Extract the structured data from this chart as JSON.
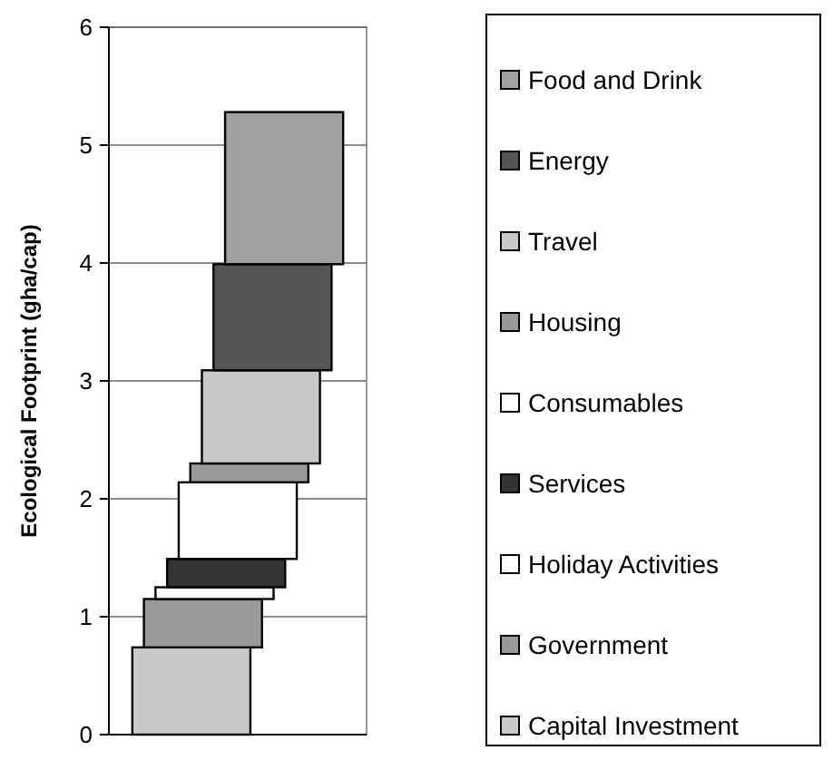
{
  "chart_data": {
    "type": "bar",
    "stacked": true,
    "ylabel": "Ecological Footprint (gha/cap)",
    "categories": [
      null
    ],
    "series": [
      {
        "name": "Capital Investment",
        "color": "#c8c8c8",
        "values": [
          0.74
        ]
      },
      {
        "name": "Government",
        "color": "#999999",
        "values": [
          0.41
        ]
      },
      {
        "name": "Holiday Activities",
        "color": "#ffffff",
        "values": [
          0.1
        ]
      },
      {
        "name": "Services",
        "color": "#333333",
        "values": [
          0.24
        ]
      },
      {
        "name": "Consumables",
        "color": "#ffffff",
        "values": [
          0.65
        ]
      },
      {
        "name": "Housing",
        "color": "#999999",
        "values": [
          0.16
        ]
      },
      {
        "name": "Travel",
        "color": "#c8c8c8",
        "values": [
          0.79
        ]
      },
      {
        "name": "Energy",
        "color": "#555555",
        "values": [
          0.9
        ]
      },
      {
        "name": "Food and Drink",
        "color": "#a0a0a0",
        "values": [
          1.29
        ]
      }
    ],
    "ylim": [
      0,
      6
    ],
    "yticks": [
      0,
      1,
      2,
      3,
      4,
      5,
      6
    ],
    "grid": "y",
    "legend": "right"
  }
}
